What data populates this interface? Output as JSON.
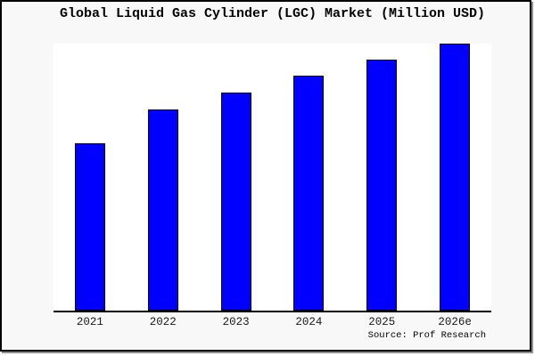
{
  "chart": {
    "title": "Global Liquid Gas Cylinder (LGC) Market (Million USD)",
    "source": "Source: Prof Research",
    "colors": {
      "bar_fill": "#0000ff",
      "bar_edge": "#000000",
      "figure_bg": "#f8f8f8",
      "plot_bg": "#ffffff",
      "axis_line": "#000000",
      "border": "#000000"
    }
  },
  "chart_data": {
    "type": "bar",
    "title": "Global Liquid Gas Cylinder (LGC) Market (Million USD)",
    "categories": [
      "2021",
      "2022",
      "2023",
      "2024",
      "2025",
      "2026e"
    ],
    "values": [
      188,
      226,
      245,
      264,
      282,
      301
    ],
    "values_unit": "relative height (no y-axis labels shown in chart)",
    "xlabel": "",
    "ylabel": "",
    "ylim": [
      0,
      302
    ],
    "grid": false,
    "legend": false,
    "y_axis_ticks": [],
    "source": "Source: Prof Research"
  }
}
